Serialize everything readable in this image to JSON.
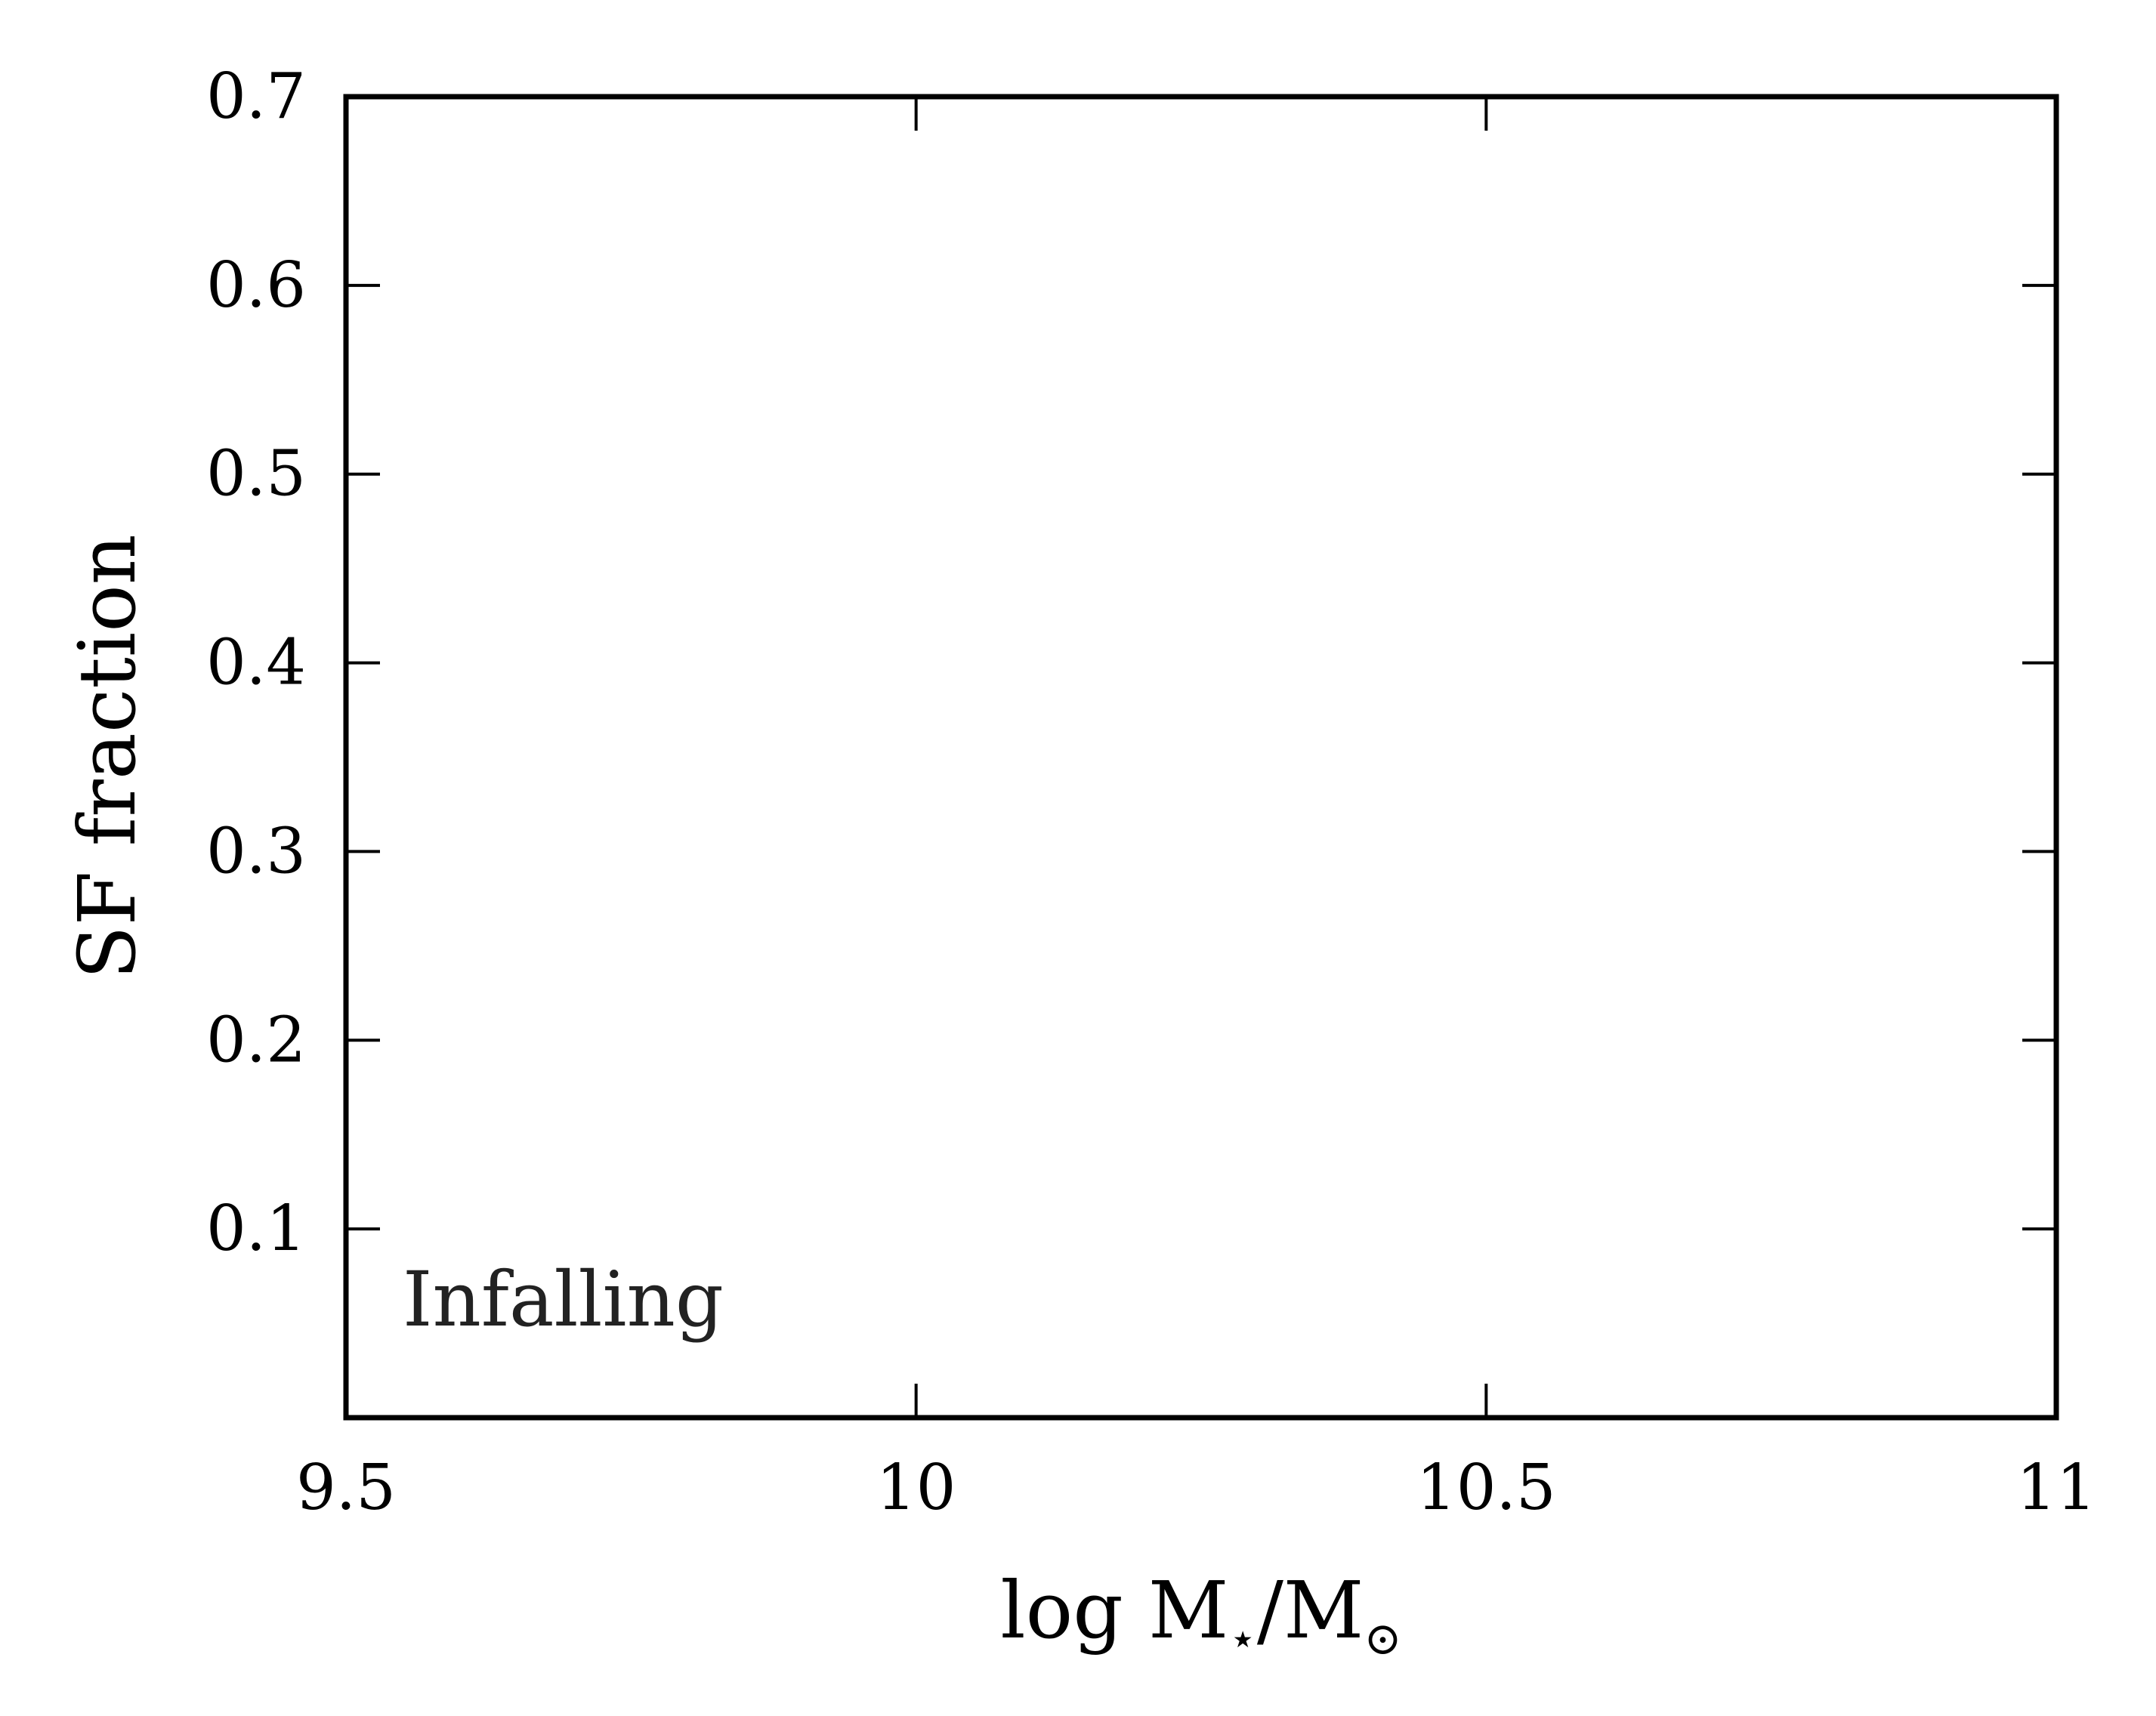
{
  "chart_data": {
    "type": "scatter",
    "title": "",
    "xlabel": "log M",
    "xlabel_sub1": "⋆",
    "xlabel_mid": "/M",
    "xlabel_sub2": "⊙",
    "ylabel": "SF fraction",
    "xlim": [
      9.5,
      11
    ],
    "ylim": [
      0,
      0.7
    ],
    "xticks": [
      9.5,
      10,
      10.5,
      11
    ],
    "xtick_labels": [
      "9.5",
      "10",
      "10.5",
      "11"
    ],
    "yticks": [
      0.1,
      0.2,
      0.3,
      0.4,
      0.5,
      0.6,
      0.7
    ],
    "ytick_labels": [
      "0.1",
      "0.2",
      "0.3",
      "0.4",
      "0.5",
      "0.6",
      "0.7"
    ],
    "annotations": [
      {
        "text": "Infalling",
        "position": "bottom-left"
      }
    ],
    "series": [],
    "grid": false,
    "legend": "none",
    "colors": {
      "axis": "#000000",
      "annotation": "#222222"
    }
  }
}
